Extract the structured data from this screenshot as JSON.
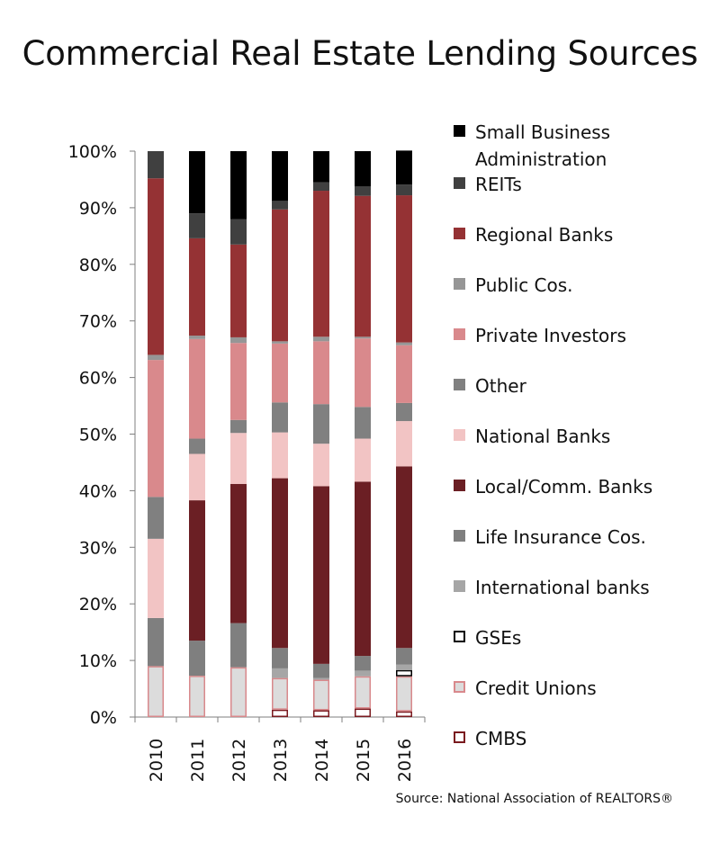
{
  "title": "Commercial Real Estate Lending Sources",
  "source": "Source: National Association of REALTORS®",
  "chart_data": {
    "type": "bar",
    "stacked": true,
    "title": "Commercial Real Estate Lending Sources",
    "xlabel": "",
    "ylabel": "",
    "ylim": [
      0,
      100
    ],
    "yticks": [
      "0%",
      "10%",
      "20%",
      "30%",
      "40%",
      "50%",
      "60%",
      "70%",
      "80%",
      "90%",
      "100%"
    ],
    "categories": [
      "2010",
      "2011",
      "2012",
      "2013",
      "2014",
      "2015",
      "2016"
    ],
    "grid": false,
    "legend_position": "right",
    "series": [
      {
        "name": "CMBS",
        "color": "#ffffff",
        "stroke": "#7a1a1f",
        "values": [
          0,
          0,
          0,
          1.3,
          1.2,
          1.5,
          1.0
        ]
      },
      {
        "name": "Credit Unions",
        "color": "#dcdcdc",
        "stroke": "#d9898c",
        "values": [
          9.0,
          7.3,
          8.8,
          5.6,
          5.4,
          5.7,
          6.2
        ]
      },
      {
        "name": "GSEs",
        "color": "#ffffff",
        "stroke": "#000000",
        "values": [
          0,
          0,
          0,
          0,
          0,
          0,
          1.1
        ]
      },
      {
        "name": "International banks",
        "color": "#a6a6a6",
        "stroke": "#a6a6a6",
        "values": [
          0,
          0,
          0,
          1.7,
          0.3,
          1.0,
          1.0
        ]
      },
      {
        "name": "Life Insurance Cos.",
        "color": "#7f7f7f",
        "stroke": "#7f7f7f",
        "values": [
          8.5,
          6.2,
          7.8,
          3.6,
          2.5,
          2.6,
          2.9
        ]
      },
      {
        "name": "Local/Comm. Banks",
        "color": "#6b1f24",
        "stroke": "#6b1f24",
        "values": [
          0,
          24.8,
          24.6,
          30.0,
          31.4,
          30.8,
          32.1
        ]
      },
      {
        "name": "National Banks",
        "color": "#f2c4c4",
        "stroke": "#f2c4c4",
        "values": [
          14.0,
          8.2,
          9.0,
          8.1,
          7.5,
          7.6,
          8.0
        ]
      },
      {
        "name": "Other",
        "color": "#808080",
        "stroke": "#808080",
        "values": [
          7.4,
          2.7,
          2.3,
          5.3,
          7.0,
          5.6,
          3.2
        ]
      },
      {
        "name": "Private Investors",
        "color": "#d9898c",
        "stroke": "#d9898c",
        "values": [
          24.2,
          17.6,
          13.6,
          10.4,
          11.1,
          12.1,
          10.2
        ]
      },
      {
        "name": "Public Cos.",
        "color": "#969696",
        "stroke": "#969696",
        "values": [
          0.9,
          0.6,
          1.0,
          0.4,
          0.8,
          0.3,
          0.5
        ]
      },
      {
        "name": "Regional Banks",
        "color": "#953234",
        "stroke": "#953234",
        "values": [
          31.2,
          17.2,
          16.4,
          23.3,
          25.8,
          24.9,
          26.0
        ]
      },
      {
        "name": "REITs",
        "color": "#404040",
        "stroke": "#404040",
        "values": [
          4.8,
          4.4,
          4.5,
          1.5,
          1.5,
          1.7,
          1.9
        ]
      },
      {
        "name": "Small Business Administration",
        "color": "#000000",
        "stroke": "#000000",
        "values": [
          0,
          11.0,
          12.0,
          8.8,
          5.5,
          6.2,
          6.0
        ]
      }
    ],
    "legend": [
      "Small Business Administration",
      "REITs",
      "Regional Banks",
      "Public Cos.",
      "Private Investors",
      "Other",
      "National Banks",
      "Local/Comm. Banks",
      "Life Insurance Cos.",
      "International banks",
      "GSEs",
      "Credit Unions",
      "CMBS"
    ]
  }
}
